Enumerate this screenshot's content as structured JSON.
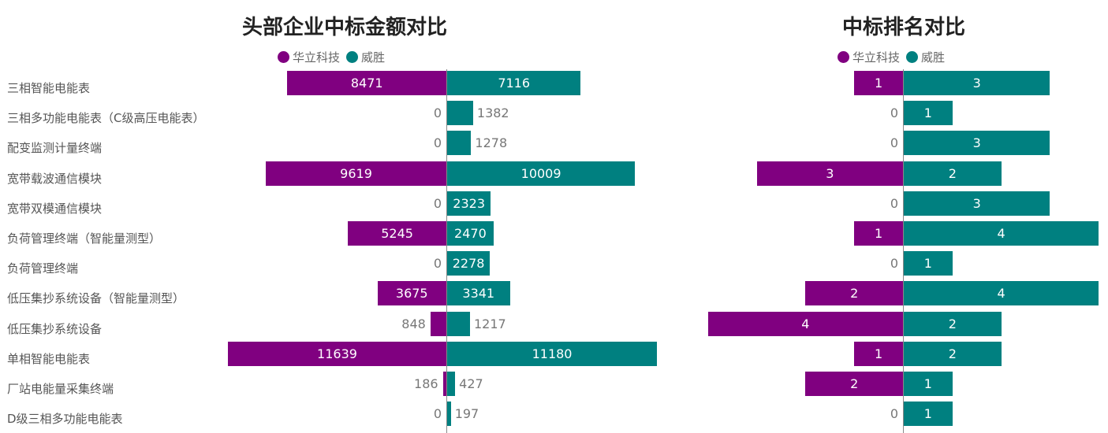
{
  "colors": {
    "huali": "#800080",
    "weisheng": "#008080"
  },
  "chart_data": [
    {
      "type": "bar",
      "title": "头部企业中标金额对比",
      "orientation": "horizontal-diverging",
      "legend": {
        "placement": "top",
        "entries": [
          "华立科技",
          "威胜"
        ]
      },
      "categories": [
        "三相智能电能表",
        "三相多功能电能表（C级高压电能表）",
        "配变监测计量终端",
        "宽带载波通信模块",
        "宽带双模通信模块",
        "负荷管理终端（智能量测型）",
        "负荷管理终端",
        "低压集抄系统设备（智能量测型）",
        "低压集抄系统设备",
        "单相智能电能表",
        "厂站电能量采集终端",
        "D级三相多功能电能表"
      ],
      "series": [
        {
          "name": "华立科技",
          "values": [
            8471,
            0,
            0,
            9619,
            0,
            5245,
            0,
            3675,
            848,
            11639,
            186,
            0
          ]
        },
        {
          "name": "威胜",
          "values": [
            7116,
            1382,
            1278,
            10009,
            2323,
            2470,
            2278,
            3341,
            1217,
            11180,
            427,
            197
          ]
        }
      ]
    },
    {
      "type": "bar",
      "title": "中标排名对比",
      "orientation": "horizontal-diverging",
      "legend": {
        "placement": "top",
        "entries": [
          "华立科技",
          "威胜"
        ]
      },
      "series": [
        {
          "name": "华立科技",
          "values": [
            1,
            0,
            0,
            3,
            0,
            1,
            0,
            2,
            4,
            1,
            2,
            0
          ]
        },
        {
          "name": "威胜",
          "values": [
            3,
            1,
            3,
            2,
            3,
            4,
            1,
            4,
            2,
            2,
            1,
            1
          ]
        }
      ]
    }
  ]
}
